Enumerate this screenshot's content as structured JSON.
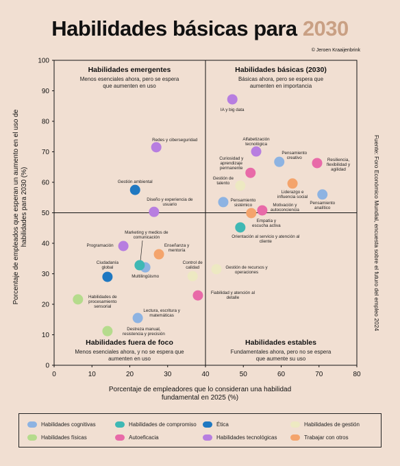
{
  "chart_data": {
    "type": "scatter",
    "title": "Habilidades básicas para",
    "title_highlight": "2030",
    "credit": "© Jeroen Kraaijenbrink",
    "source": "Fuente: Foro Económico Mundial, encuesta sobre el futuro del empleo 2024",
    "x_label": "Porcentaje de empleadores que lo consideran una habilidad fundamental en 2025 (%)",
    "y_label": "Porcentaje de empleados que esperan un aumento en el uso de habilidades para 2030 (%)",
    "xlim": [
      0,
      80
    ],
    "ylim": [
      0,
      100
    ],
    "xticks": [
      0,
      10,
      20,
      30,
      40,
      50,
      60,
      70,
      80
    ],
    "yticks": [
      0,
      10,
      20,
      30,
      40,
      50,
      60,
      70,
      80,
      90,
      100
    ],
    "quadrants": [
      {
        "title": "Habilidades emergentes",
        "text": "Menos esenciales ahora, pero se espera que aumenten en uso"
      },
      {
        "title": "Habilidades básicas (2030)",
        "text": "Básicas ahora, pero se espera que aumenten en importancia"
      },
      {
        "title": "Habilidades fuera de foco",
        "text": "Menos esenciales ahora, y no se espera que aumenten en uso"
      },
      {
        "title": "Habilidades estables",
        "text": "Fundamentales ahora, pero no se espera que aumente su uso"
      }
    ],
    "series": [
      {
        "name": "Habilidades cognitivas",
        "color": "#8db3e2",
        "labels": [
          "Pensamiento creativo",
          "Pensamiento analítico",
          "Pensamiento sistémico",
          "Multilingüismo",
          "Lectura, escritura y matemáticas"
        ],
        "x": [
          59.5,
          70.9,
          44.7,
          24.1,
          22.1
        ],
        "y": [
          66.7,
          56.0,
          53.5,
          32.1,
          15.5
        ]
      },
      {
        "name": "Habilidades de compromiso",
        "color": "#3fb8b4",
        "labels": [
          "Orientación al servicio y atención al cliente",
          "Marketing y medios de comunicación"
        ],
        "x": [
          49.2,
          22.6
        ],
        "y": [
          45.2,
          32.8
        ]
      },
      {
        "name": "Ética",
        "color": "#1f78c1",
        "labels": [
          "Gestión ambiental",
          "Ciudadanía global"
        ],
        "x": [
          21.4,
          14.1
        ],
        "y": [
          57.5,
          29.0
        ]
      },
      {
        "name": "Habilidades de gestión",
        "color": "#ede9c2",
        "labels": [
          "Gestión de talento",
          "Control de calidad",
          "Gestión de recursos y operaciones"
        ],
        "x": [
          49.2,
          36.6,
          42.9
        ],
        "y": [
          58.9,
          29.2,
          31.5
        ]
      },
      {
        "name": "Habilidades físicas",
        "color": "#b5db8c",
        "labels": [
          "Habilidades de procesamiento sensorial",
          "Destreza manual, resistencia y precisión"
        ],
        "x": [
          6.3,
          14.1
        ],
        "y": [
          21.6,
          11.2
        ]
      },
      {
        "name": "Autoeficacia",
        "color": "#e86aa8",
        "labels": [
          "Resiliencia, flexibilidad y agilidad",
          "Curiosidad y aprendizaje permanente",
          "Motivación y autoconciencia",
          "Fiabilidad y atención al detalle"
        ],
        "x": [
          69.5,
          51.9,
          55.0,
          38.0
        ],
        "y": [
          66.3,
          63.1,
          50.8,
          22.9
        ]
      },
      {
        "name": "Habilidades tecnológicas",
        "color": "#b77ee0",
        "labels": [
          "IA y big data",
          "Redes y ciberseguridad",
          "Diseño y experiencia de usuario",
          "Alfabetización tecnológica",
          "Programación"
        ],
        "x": [
          47.1,
          27.0,
          26.4,
          53.4,
          18.3
        ],
        "y": [
          87.2,
          71.5,
          50.3,
          70.1,
          39.1
        ]
      },
      {
        "name": "Trabajar con otros",
        "color": "#f4a46c",
        "labels": [
          "Liderazgo e influencia social",
          "Empatía y escucha activa",
          "Enseñanza y mentoría"
        ],
        "x": [
          63.0,
          52.1,
          27.7
        ],
        "y": [
          59.6,
          49.9,
          36.4
        ]
      }
    ]
  }
}
